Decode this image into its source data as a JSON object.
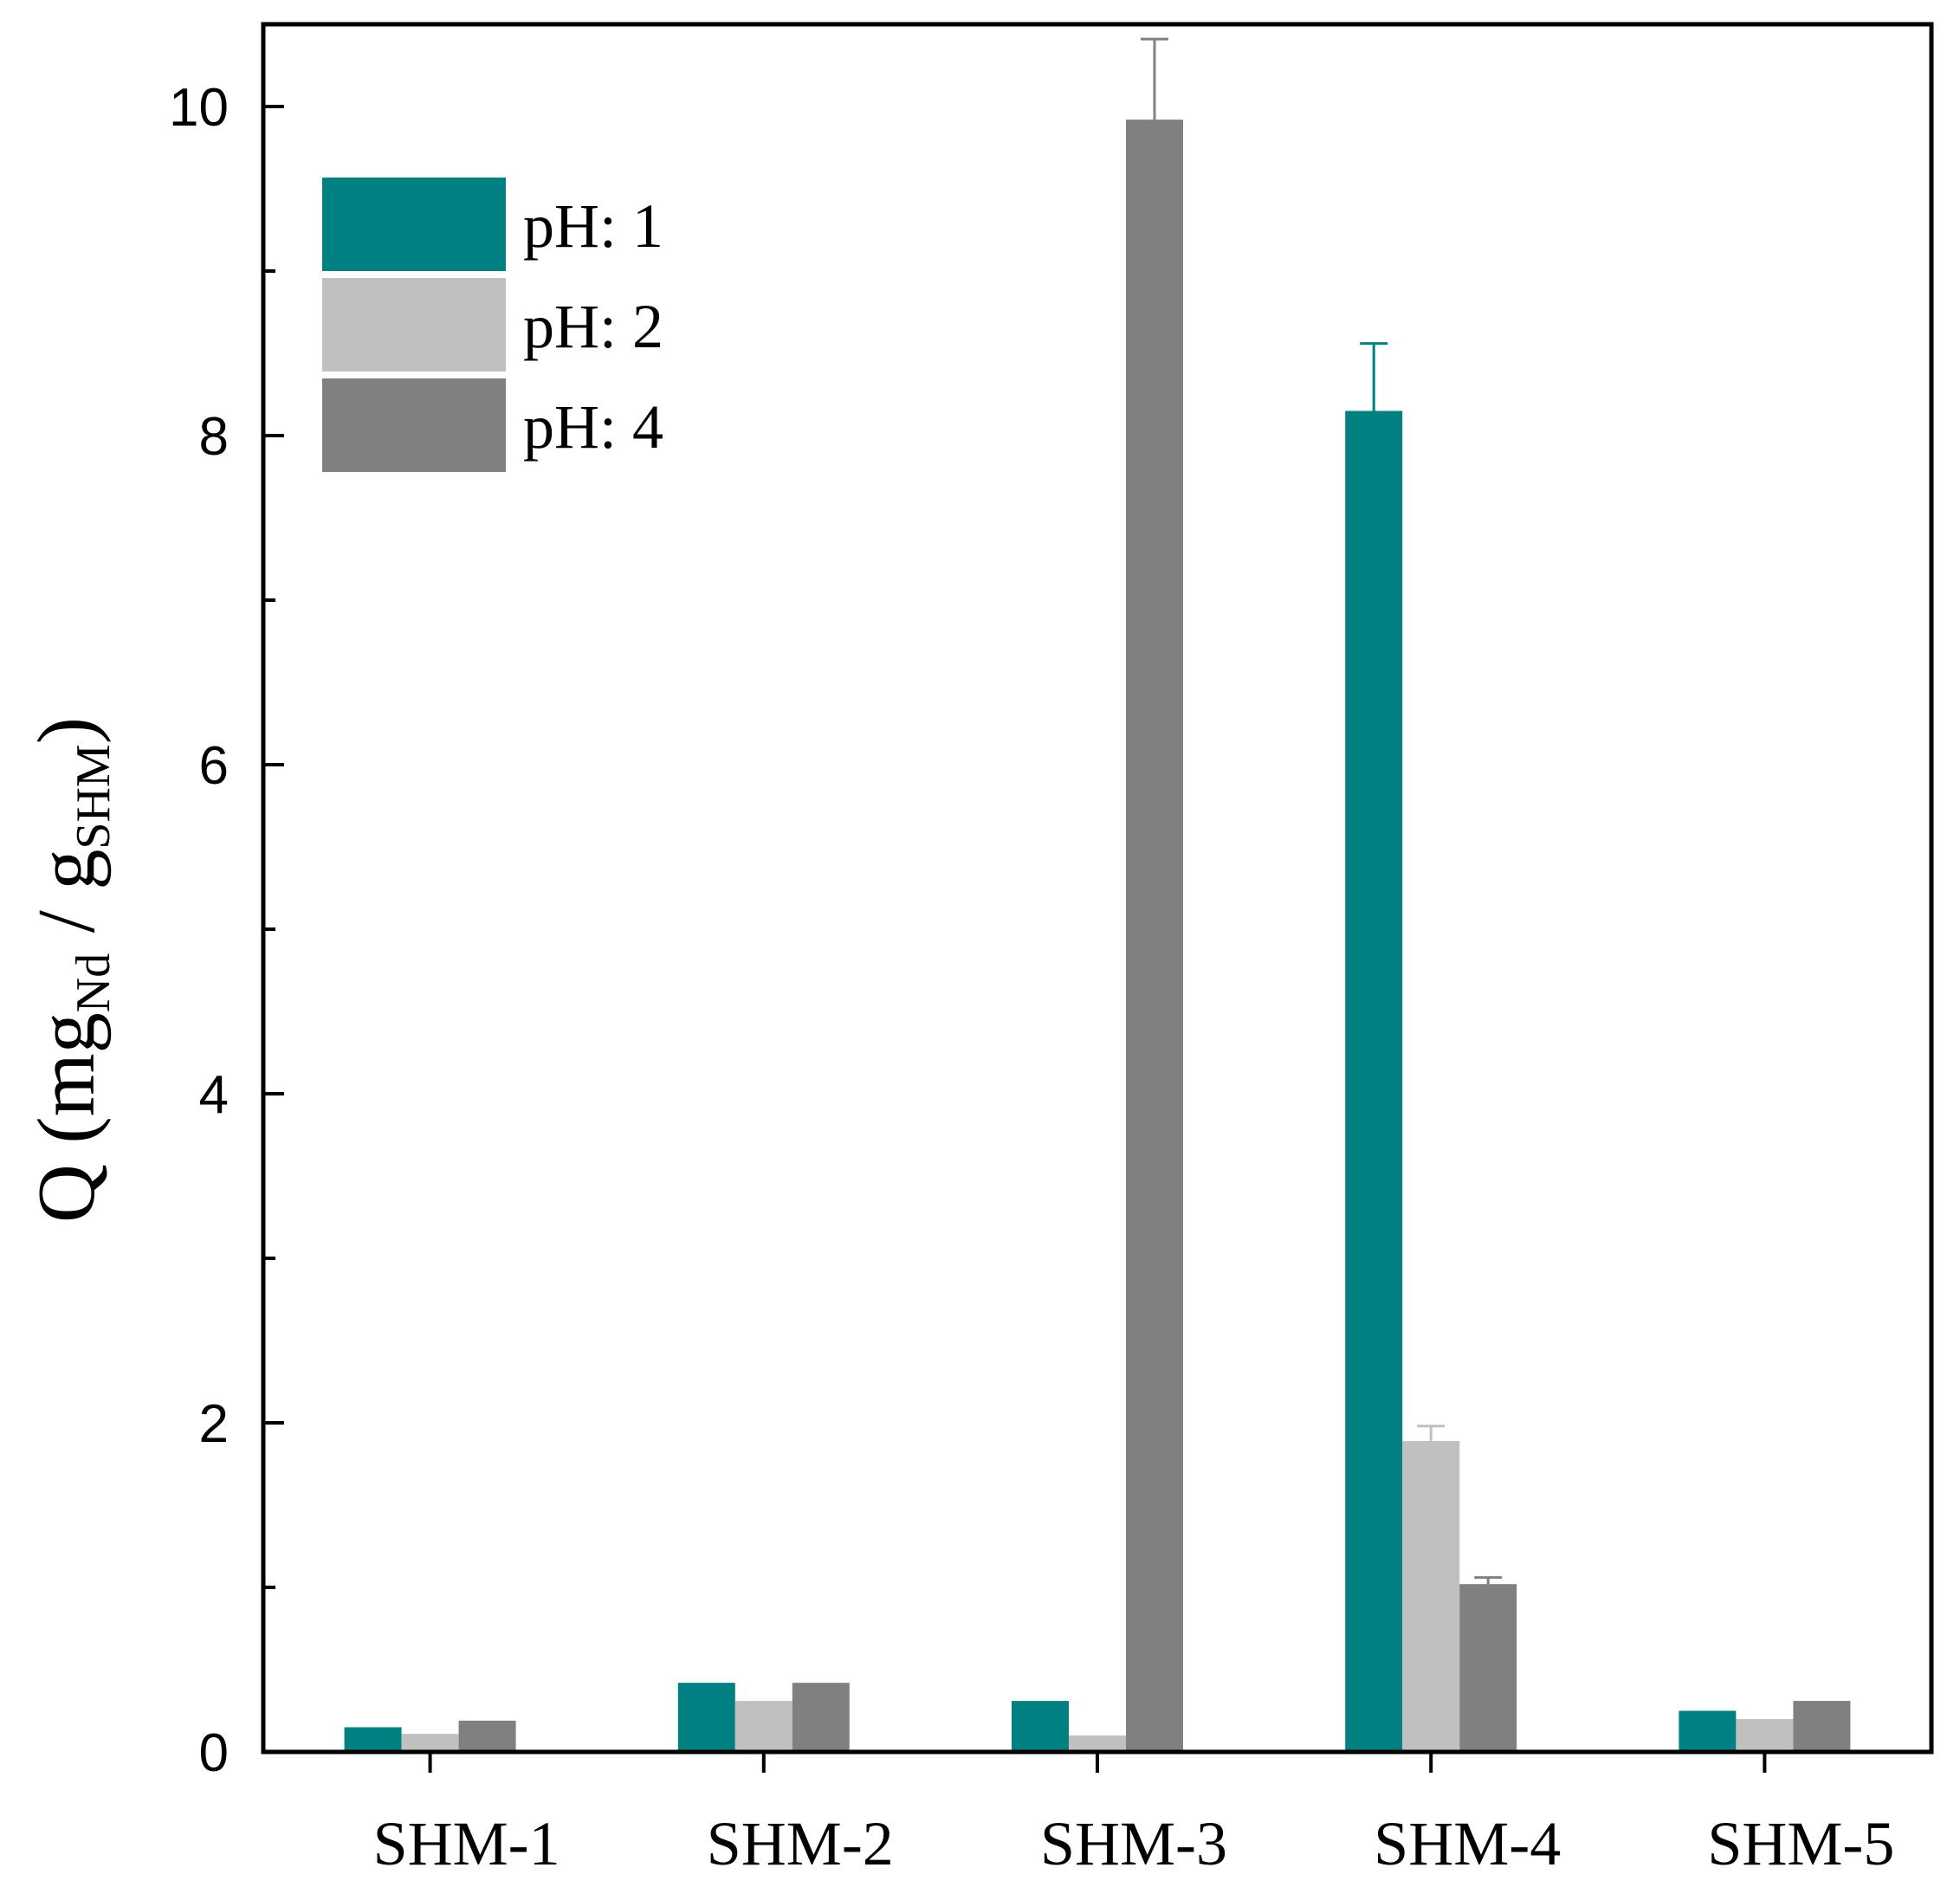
{
  "chart_data": {
    "type": "bar",
    "title": "",
    "xlabel": "",
    "ylabel": {
      "main": "Q (mg",
      "sub1": "Nd",
      "sep": " / g",
      "sub2": "SHM",
      "end": ")"
    },
    "categories": [
      "SHM-1",
      "SHM-2",
      "SHM-3",
      "SHM-4",
      "SHM-5"
    ],
    "ylim": [
      0,
      10.5
    ],
    "yticks": [
      0,
      2,
      4,
      6,
      8,
      10
    ],
    "y_minor_ticks": [
      1,
      3,
      5,
      7,
      9
    ],
    "series": [
      {
        "name": "pH: 1",
        "color": "#008080",
        "values": [
          0.15,
          0.42,
          0.31,
          8.15,
          0.25
        ],
        "errors": [
          0.0,
          0.01,
          0.01,
          0.41,
          0.01
        ]
      },
      {
        "name": "pH: 2",
        "color": "#c0c0c0",
        "values": [
          0.11,
          0.31,
          0.1,
          1.89,
          0.2
        ],
        "errors": [
          0.0,
          0.01,
          0.0,
          0.09,
          0.01
        ]
      },
      {
        "name": "pH: 4",
        "color": "#808080",
        "values": [
          0.19,
          0.42,
          9.92,
          1.02,
          0.31
        ],
        "errors": [
          0.0,
          0.01,
          0.49,
          0.04,
          0.01
        ]
      }
    ],
    "legend": {
      "position": "top-left",
      "labels": [
        "pH: 1",
        "pH: 2",
        "pH: 4"
      ]
    }
  }
}
